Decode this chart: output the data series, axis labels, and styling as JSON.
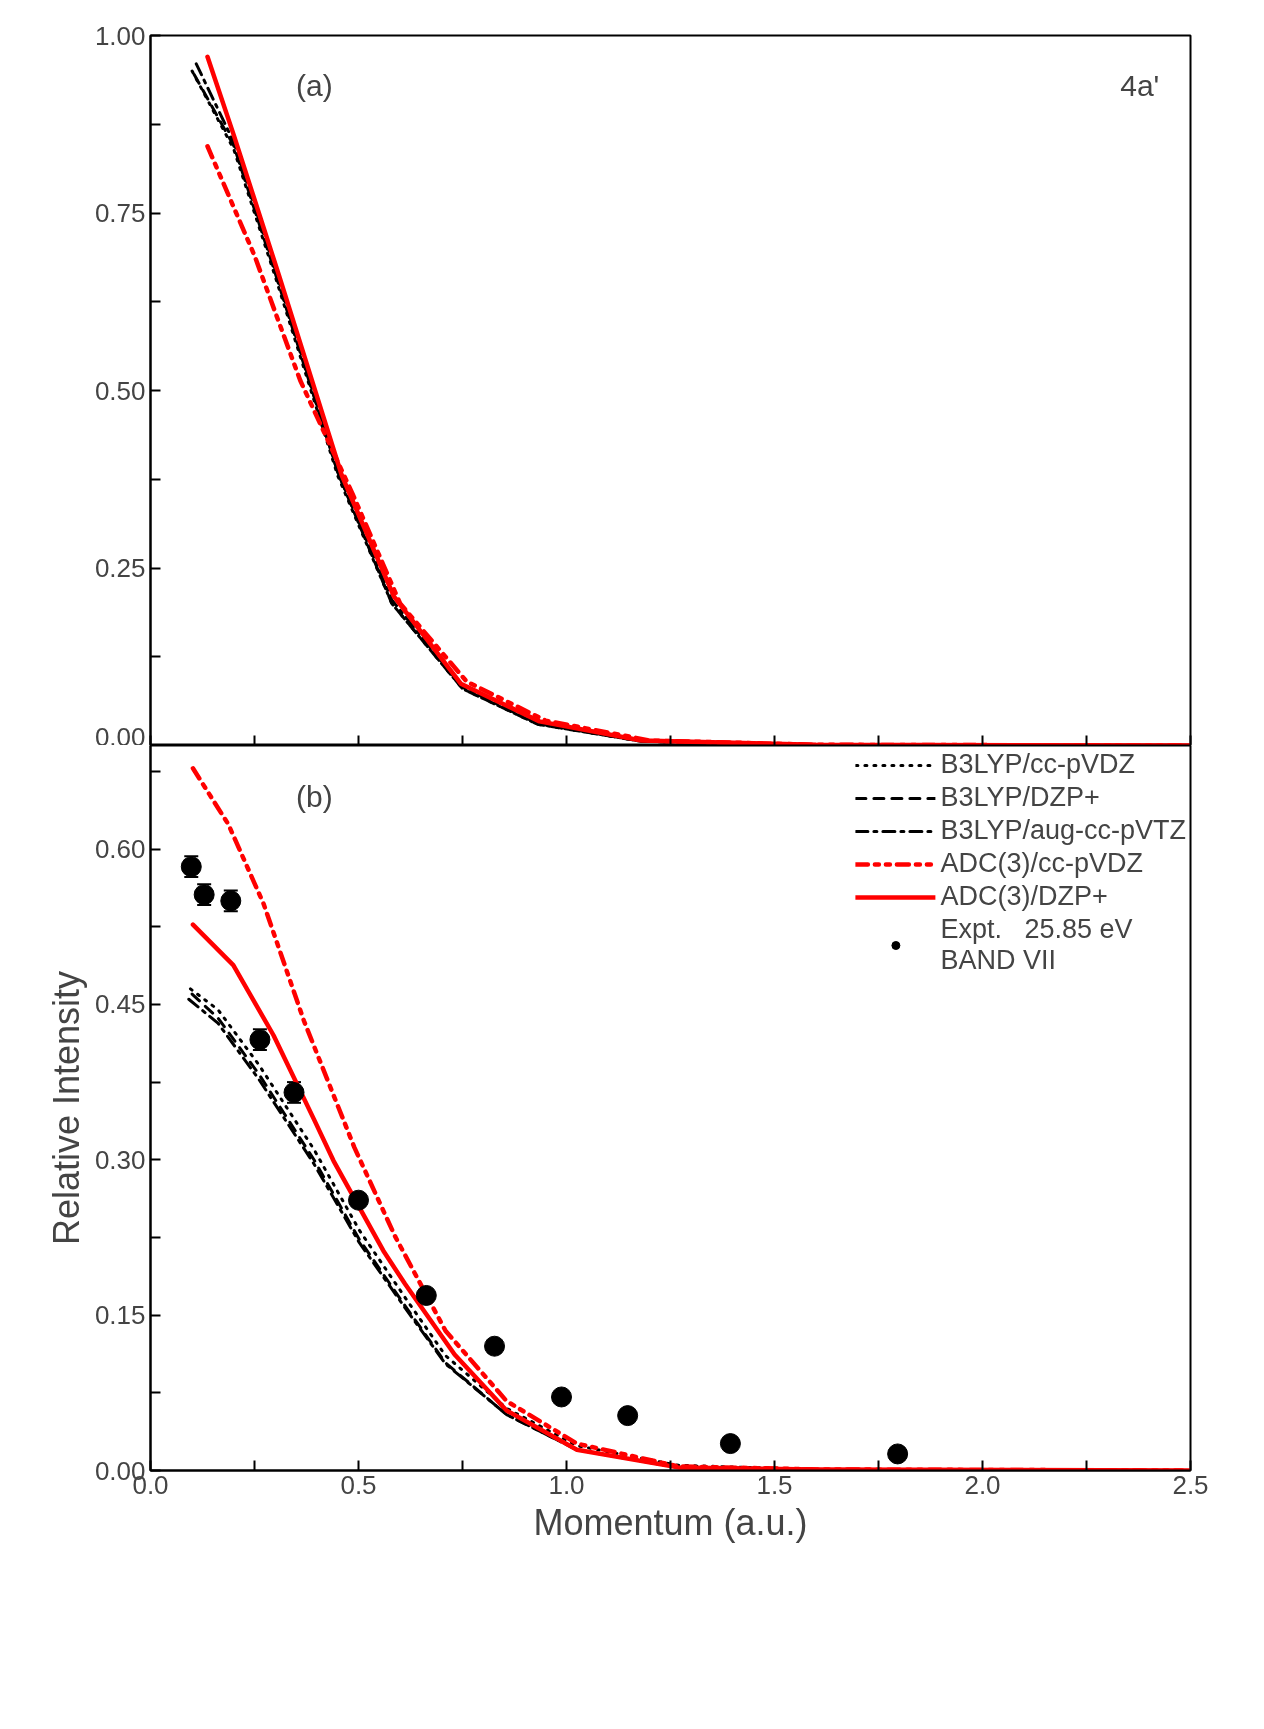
{
  "chart_data": [
    {
      "type": "line",
      "annotations": [
        "(a)",
        "4a'"
      ],
      "xlim": [
        0,
        2.5
      ],
      "ylim": [
        0,
        1.0
      ],
      "xticks": [
        {
          "value": 0,
          "label": null
        },
        {
          "value": 0.25,
          "label": null
        },
        {
          "value": 0.5,
          "label": null
        },
        {
          "value": 0.75,
          "label": null
        },
        {
          "value": 1.0,
          "label": null
        },
        {
          "value": 1.25,
          "label": null
        },
        {
          "value": 1.5,
          "label": null
        },
        {
          "value": 1.75,
          "label": null
        },
        {
          "value": 2.0,
          "label": null
        },
        {
          "value": 2.25,
          "label": null
        },
        {
          "value": 2.5,
          "label": null
        }
      ],
      "yticks": [
        {
          "value": 0,
          "label": "0.00"
        },
        {
          "value": 0.125,
          "label": null
        },
        {
          "value": 0.25,
          "label": "0.25"
        },
        {
          "value": 0.375,
          "label": null
        },
        {
          "value": 0.5,
          "label": "0.50"
        },
        {
          "value": 0.625,
          "label": null
        },
        {
          "value": 0.75,
          "label": "0.75"
        },
        {
          "value": 0.875,
          "label": null
        },
        {
          "value": 1.0,
          "label": "1.00"
        }
      ],
      "tick_labels": "y",
      "grid": false,
      "legend": false,
      "series": [
        {
          "color": "#000000",
          "line_style": "dotted",
          "x": [
            0.1,
            0.2,
            0.3,
            0.45,
            0.58,
            0.75,
            0.93,
            1.18,
            1.6,
            2.48
          ],
          "values": [
            0.95,
            0.84,
            0.66,
            0.38,
            0.2,
            0.08,
            0.03,
            0.006,
            0,
            0
          ]
        },
        {
          "color": "#000000",
          "line_style": "dashed",
          "x": [
            0.105,
            0.2,
            0.3,
            0.45,
            0.58,
            0.75,
            0.93,
            1.18,
            1.6,
            2.45
          ],
          "values": [
            0.945,
            0.845,
            0.665,
            0.385,
            0.2,
            0.08,
            0.03,
            0.006,
            0,
            0
          ]
        },
        {
          "color": "#000000",
          "line_style": "dashdot",
          "x": [
            0.11,
            0.2,
            0.3,
            0.45,
            0.58,
            0.75,
            0.93,
            1.18,
            1.6,
            2.42
          ],
          "values": [
            0.96,
            0.85,
            0.67,
            0.385,
            0.205,
            0.082,
            0.031,
            0.006,
            0,
            0
          ]
        },
        {
          "color": "#ff0000",
          "line_style": "dashdotdot",
          "x": [
            0.137,
            0.25,
            0.36,
            0.486,
            0.6,
            0.76,
            0.95,
            1.2,
            1.6,
            2.48
          ],
          "values": [
            0.844,
            0.69,
            0.514,
            0.354,
            0.2,
            0.09,
            0.035,
            0.007,
            0.001,
            0
          ]
        },
        {
          "color": "#ff0000",
          "line_style": "solid",
          "x": [
            0.137,
            0.2,
            0.31,
            0.46,
            0.585,
            0.746,
            0.935,
            1.18,
            1.6,
            2.5
          ],
          "values": [
            0.97,
            0.86,
            0.66,
            0.38,
            0.21,
            0.087,
            0.034,
            0.007,
            0.001,
            0
          ]
        }
      ]
    },
    {
      "type": "line",
      "annotations": [
        "(b)"
      ],
      "xlabel": "Momentum (a.u.)",
      "ylabel": "Relative Intensity",
      "xlim": [
        0,
        2.5
      ],
      "ylim": [
        0,
        0.7
      ],
      "xticks": [
        {
          "value": 0,
          "label": "0.0"
        },
        {
          "value": 0.25,
          "label": null
        },
        {
          "value": 0.5,
          "label": "0.5"
        },
        {
          "value": 0.75,
          "label": null
        },
        {
          "value": 1.0,
          "label": "1.0"
        },
        {
          "value": 1.25,
          "label": null
        },
        {
          "value": 1.5,
          "label": "1.5"
        },
        {
          "value": 1.75,
          "label": null
        },
        {
          "value": 2.0,
          "label": "2.0"
        },
        {
          "value": 2.25,
          "label": null
        },
        {
          "value": 2.5,
          "label": "2.5"
        }
      ],
      "yticks": [
        {
          "value": 0,
          "label": "0.00"
        },
        {
          "value": 0.075,
          "label": null
        },
        {
          "value": 0.15,
          "label": "0.15"
        },
        {
          "value": 0.225,
          "label": null
        },
        {
          "value": 0.3,
          "label": "0.30"
        },
        {
          "value": 0.375,
          "label": null
        },
        {
          "value": 0.45,
          "label": "0.45"
        },
        {
          "value": 0.525,
          "label": null
        },
        {
          "value": 0.6,
          "label": "0.60"
        },
        {
          "value": 0.675,
          "label": null
        }
      ],
      "grid": false,
      "legend": "top right",
      "series": [
        {
          "name": "B3LYP/cc-pVDZ",
          "color": "#000000",
          "line_style": "dotted",
          "x": [
            0.096,
            0.162,
            0.26,
            0.393,
            0.502,
            0.612,
            0.709,
            0.856,
            1.025,
            1.268,
            1.6
          ],
          "values": [
            0.465,
            0.445,
            0.392,
            0.31,
            0.232,
            0.167,
            0.111,
            0.06,
            0.024,
            0.005,
            0.001
          ]
        },
        {
          "name": "B3LYP/DZP+",
          "color": "#000000",
          "line_style": "dashed",
          "x": [
            0.1,
            0.162,
            0.26,
            0.393,
            0.502,
            0.612,
            0.709,
            0.856,
            1.025,
            1.268,
            1.6,
            2.45
          ],
          "values": [
            0.46,
            0.437,
            0.383,
            0.3,
            0.223,
            0.159,
            0.104,
            0.054,
            0.02,
            0.003,
            0,
            0
          ]
        },
        {
          "name": "B3LYP/aug-cc-pVTZ",
          "color": "#000000",
          "line_style": "dashdot",
          "x": [
            0.092,
            0.162,
            0.26,
            0.393,
            0.502,
            0.612,
            0.709,
            0.856,
            1.025,
            1.268,
            1.6,
            2.42
          ],
          "values": [
            0.455,
            0.432,
            0.378,
            0.296,
            0.22,
            0.157,
            0.103,
            0.054,
            0.02,
            0.003,
            0,
            0
          ]
        },
        {
          "name": "ADC(3)/cc-pVDZ",
          "color": "#ff0000",
          "line_style": "dashdotdot",
          "x": [
            0.102,
            0.187,
            0.272,
            0.369,
            0.49,
            0.588,
            0.709,
            0.856,
            1.025,
            1.268,
            1.6,
            2.48
          ],
          "values": [
            0.678,
            0.624,
            0.547,
            0.434,
            0.312,
            0.226,
            0.135,
            0.067,
            0.026,
            0.004,
            0.001,
            0
          ]
        },
        {
          "name": "ADC(3)/DZP+",
          "color": "#ff0000",
          "line_style": "solid",
          "x": [
            0.102,
            0.199,
            0.296,
            0.393,
            0.44,
            0.56,
            0.612,
            0.731,
            0.856,
            1.025,
            1.268,
            1.6,
            2.5
          ],
          "values": [
            0.527,
            0.488,
            0.42,
            0.339,
            0.299,
            0.212,
            0.18,
            0.112,
            0.058,
            0.02,
            0.003,
            0.001,
            0
          ]
        },
        {
          "name": "Expt.   25.85 eV\nBAND VII",
          "type": "scatter",
          "marker": "circle",
          "color": "#000000",
          "x": [
            0.098,
            0.129,
            0.193,
            0.263,
            0.345,
            0.5,
            0.663,
            0.827,
            0.988,
            1.147,
            1.394,
            1.796
          ],
          "values": [
            0.583,
            0.556,
            0.55,
            0.416,
            0.365,
            0.261,
            0.169,
            0.12,
            0.071,
            0.053,
            0.026,
            0.016
          ],
          "errors": [
            0.01,
            0.01,
            0.01,
            0.01,
            0.01,
            null,
            null,
            null,
            null,
            null,
            null,
            null
          ]
        }
      ]
    }
  ]
}
